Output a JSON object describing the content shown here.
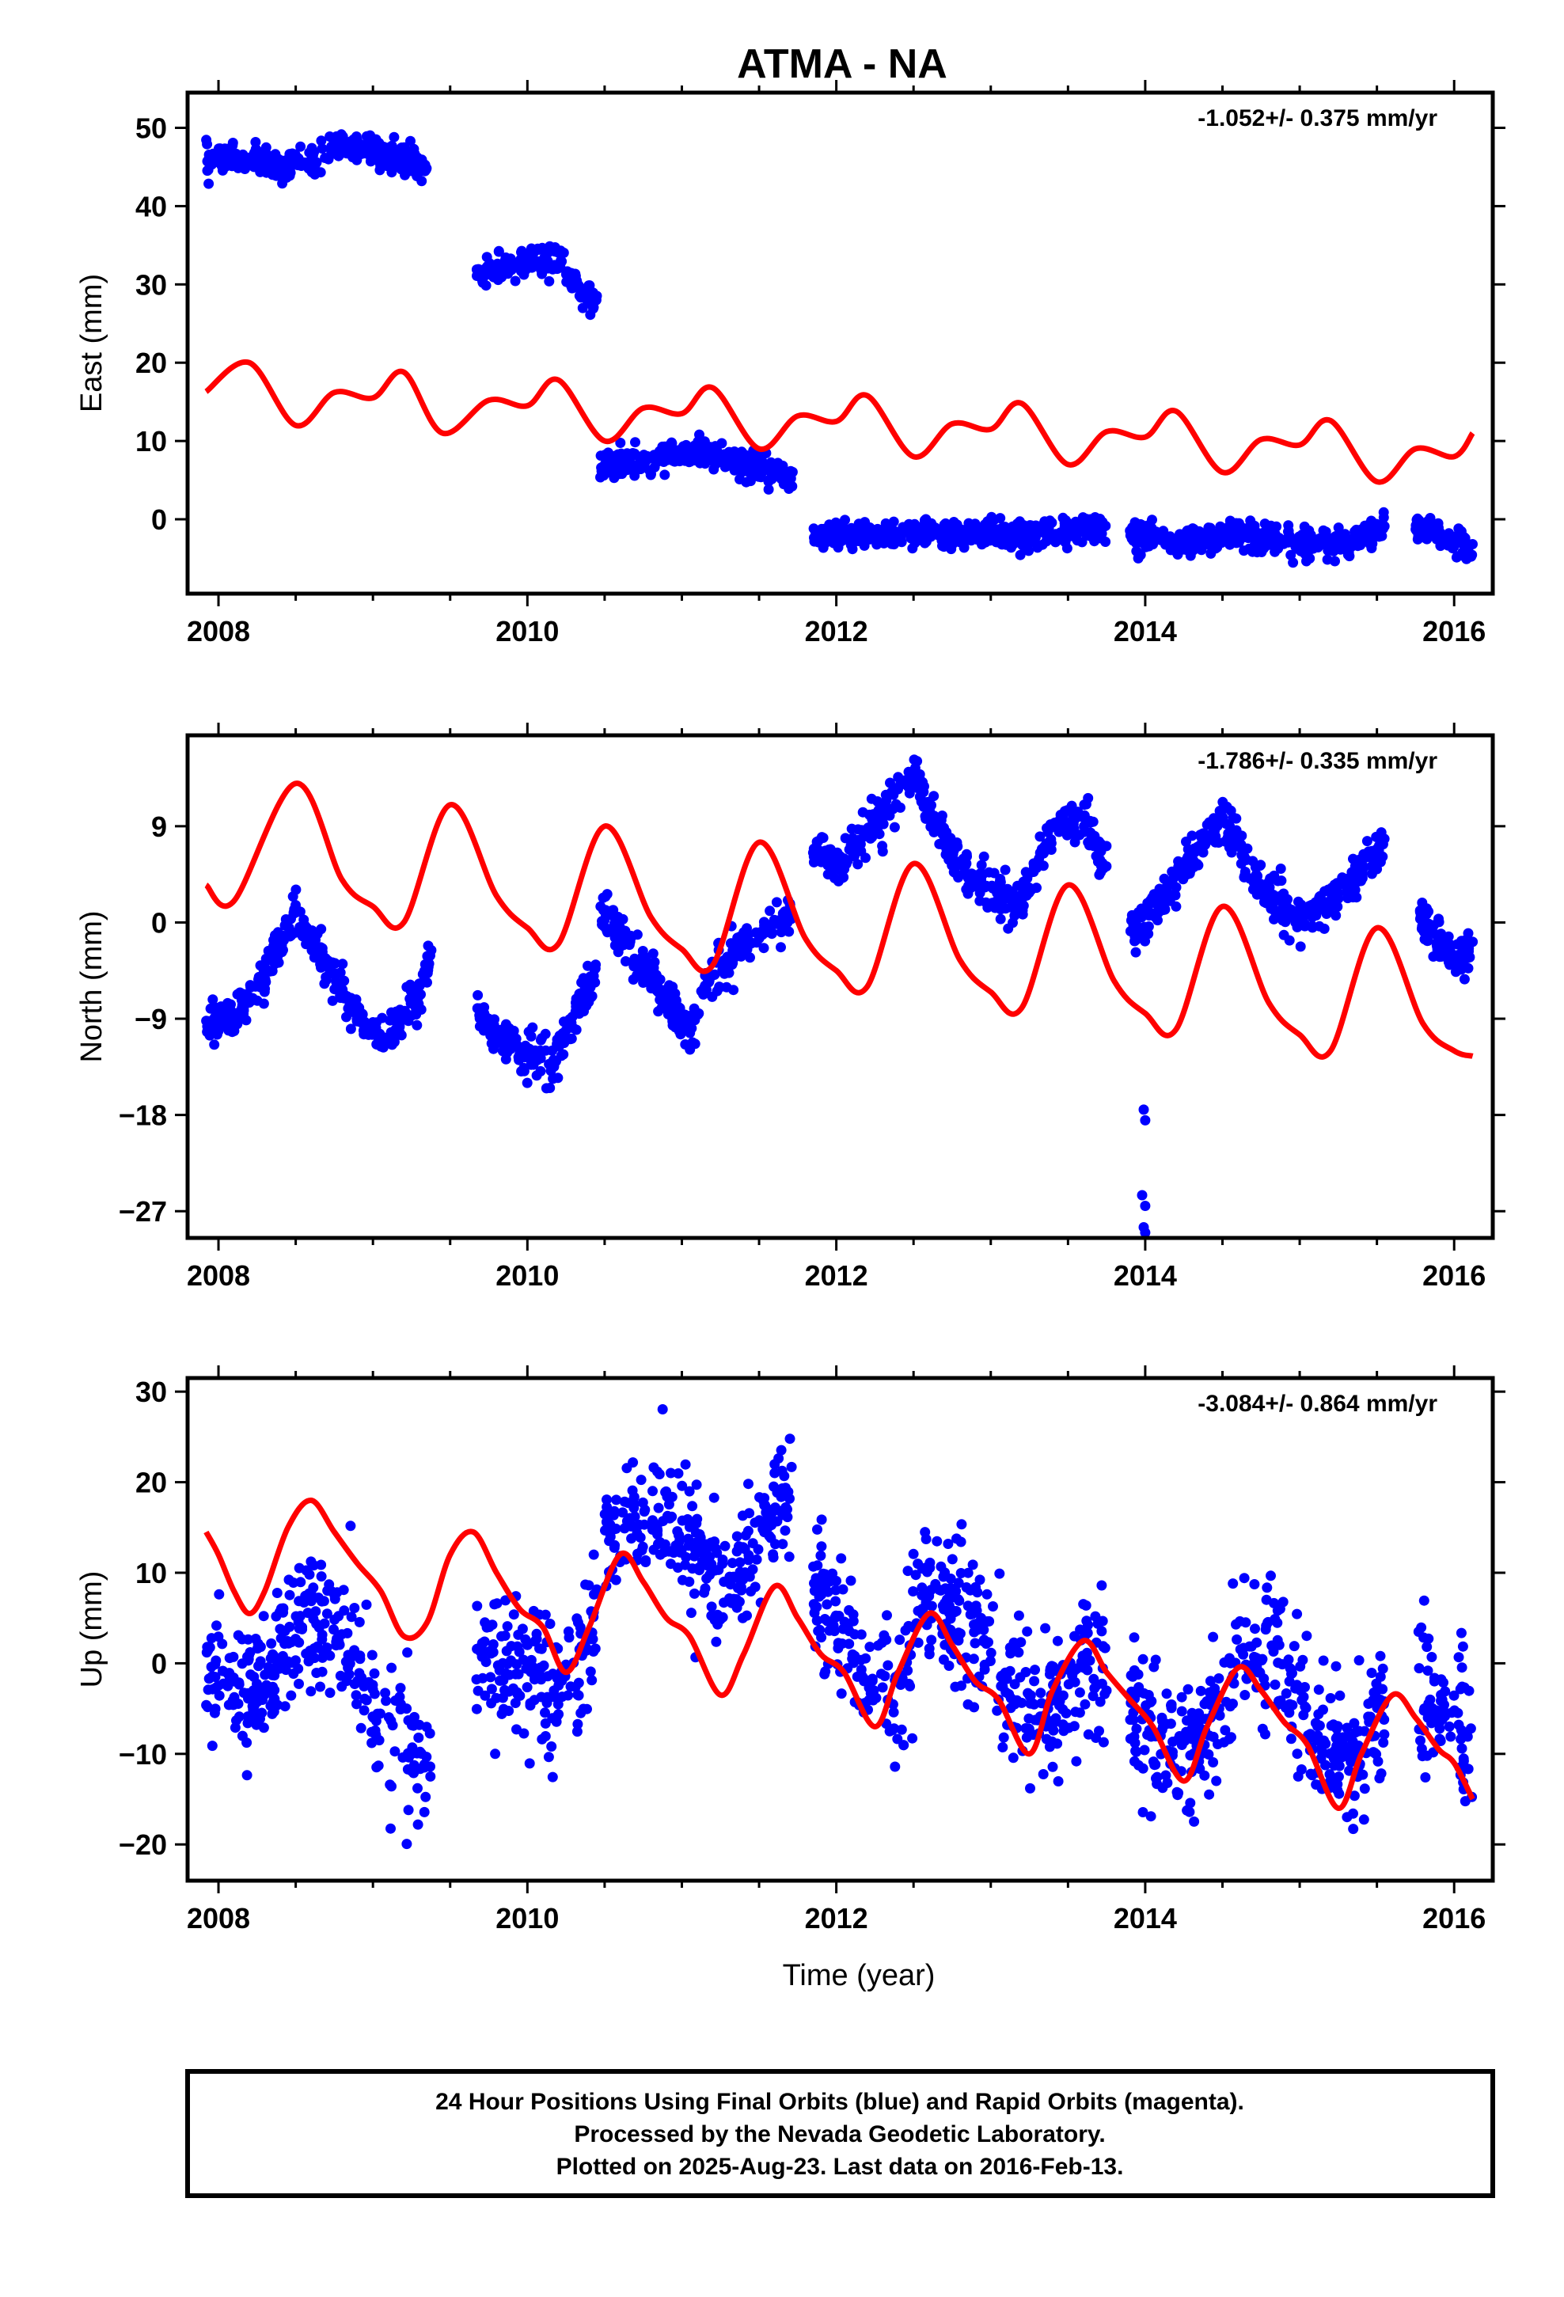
{
  "title": "ATMA - NA",
  "xlabel": "Time (year)",
  "colors": {
    "data": "#0000ff",
    "model": "#ff0000",
    "axis": "#000000"
  },
  "footer": {
    "line1": "24 Hour Positions Using Final Orbits (blue) and Rapid Orbits (magenta).",
    "line2": "Processed by the Nevada Geodetic Laboratory.",
    "line3": "Plotted on 2025-Aug-23. Last data on 2016-Feb-13."
  },
  "chart_data": [
    {
      "type": "scatter",
      "component": "East",
      "ylabel": "East (mm)",
      "rate": "-1.052+/- 0.375 mm/yr",
      "xlim": [
        2007.8,
        2016.25
      ],
      "ylim": [
        -9.5,
        54.5
      ],
      "xticks": [
        "2008",
        "2010",
        "2012",
        "2014",
        "2016"
      ],
      "yticks": [
        "0",
        "10",
        "20",
        "30",
        "40",
        "50"
      ],
      "segments": [
        {
          "x": [
            2007.92,
            2008.0,
            2008.2,
            2008.4,
            2008.6,
            2008.8,
            2009.0,
            2009.2,
            2009.35
          ],
          "y": [
            46,
            46,
            46,
            45,
            46,
            48,
            47,
            46,
            45
          ]
        },
        {
          "x": [
            2009.67,
            2009.8,
            2010.0,
            2010.2,
            2010.35,
            2010.45
          ],
          "y": [
            31,
            32,
            33,
            33,
            29,
            28
          ]
        },
        {
          "x": [
            2010.47,
            2010.6,
            2010.8,
            2011.0,
            2011.2,
            2011.4,
            2011.6,
            2011.72
          ],
          "y": [
            7,
            7,
            7,
            8,
            9,
            7,
            6,
            5
          ]
        },
        {
          "x": [
            2011.85,
            2012.0,
            2012.3,
            2012.6,
            2013.0,
            2013.3,
            2013.6,
            2013.75
          ],
          "y": [
            -2,
            -2,
            -2,
            -2,
            -2,
            -2,
            -1,
            -1
          ]
        },
        {
          "x": [
            2013.9,
            2014.0,
            2014.3,
            2014.6,
            2015.0,
            2015.3,
            2015.55
          ],
          "y": [
            -2,
            -2,
            -3,
            -2,
            -3,
            -3,
            -1
          ]
        },
        {
          "x": [
            2015.75,
            2015.9,
            2016.05,
            2016.12
          ],
          "y": [
            -1,
            -2,
            -3,
            -5
          ]
        }
      ],
      "model": {
        "x": [
          2007.92,
          2008.2,
          2008.5,
          2008.75,
          2009.0,
          2009.2,
          2009.45,
          2009.75,
          2010.0,
          2010.2,
          2010.5,
          2010.75,
          2011.0,
          2011.2,
          2011.5,
          2011.75,
          2012.0,
          2012.2,
          2012.5,
          2012.75,
          2013.0,
          2013.2,
          2013.5,
          2013.75,
          2014.0,
          2014.2,
          2014.5,
          2014.75,
          2015.0,
          2015.2,
          2015.5,
          2015.75,
          2016.0,
          2016.12
        ],
        "y": [
          16.3,
          20,
          12,
          16.2,
          15.5,
          18.8,
          11,
          15.2,
          14.5,
          17.8,
          10,
          14.2,
          13.5,
          16.8,
          9,
          13.2,
          12.5,
          15.8,
          8,
          12.2,
          11.5,
          14.8,
          7,
          11.2,
          10.5,
          13.8,
          6,
          10.2,
          9.5,
          12.6,
          4.8,
          9.0,
          8.0,
          11
        ]
      }
    },
    {
      "type": "scatter",
      "component": "North",
      "ylabel": "North (mm)",
      "rate": "-1.786+/- 0.335 mm/yr",
      "xlim": [
        2007.8,
        2016.25
      ],
      "ylim": [
        -29.5,
        17.5
      ],
      "xticks": [
        "2008",
        "2010",
        "2012",
        "2014",
        "2016"
      ],
      "yticks": [
        "9",
        "0",
        "−9",
        "−18",
        "−27"
      ],
      "segments": [
        {
          "x": [
            2007.92,
            2008.1,
            2008.3,
            2008.5,
            2008.7,
            2008.9,
            2009.1,
            2009.3,
            2009.38
          ],
          "y": [
            -9,
            -9,
            -5,
            1,
            -4,
            -9,
            -11,
            -7,
            -3
          ]
        },
        {
          "x": [
            2009.67,
            2009.8,
            2010.0,
            2010.15,
            2010.3,
            2010.45
          ],
          "y": [
            -8,
            -11,
            -12,
            -14,
            -9,
            -5
          ]
        },
        {
          "x": [
            2010.47,
            2010.6,
            2010.75,
            2010.9,
            2011.05,
            2011.2,
            2011.4,
            2011.6,
            2011.72
          ],
          "y": [
            2,
            -1,
            -4,
            -7,
            -10,
            -5,
            -2,
            0,
            1
          ]
        },
        {
          "x": [
            2011.85,
            2012.0,
            2012.3,
            2012.5,
            2012.75,
            2013.0,
            2013.2,
            2013.4,
            2013.6,
            2013.75
          ],
          "y": [
            7,
            5,
            10,
            14,
            6,
            3,
            2,
            9,
            10,
            5
          ]
        },
        {
          "x": [
            2013.9,
            2014.0,
            2014.2,
            2014.5,
            2014.75,
            2015.0,
            2015.2,
            2015.4,
            2015.55
          ],
          "y": [
            -1,
            0,
            4,
            10,
            3,
            0,
            2,
            5,
            7
          ]
        },
        {
          "x": [
            2015.75,
            2015.9,
            2016.05,
            2016.12
          ],
          "y": [
            1,
            -2,
            -4,
            -2
          ]
        }
      ],
      "outliers": {
        "x": [
          2013.99,
          2014.0,
          2013.98,
          2014.0,
          2013.99,
          2014.0
        ],
        "y": [
          -17.5,
          -18.5,
          -25.5,
          -26.5,
          -28.5,
          -29
        ]
      },
      "model": {
        "x": [
          2007.92,
          2008.1,
          2008.5,
          2008.8,
          2009.0,
          2009.2,
          2009.5,
          2009.8,
          2010.0,
          2010.2,
          2010.5,
          2010.8,
          2011.0,
          2011.2,
          2011.5,
          2011.8,
          2012.0,
          2012.2,
          2012.5,
          2012.8,
          2013.0,
          2013.2,
          2013.5,
          2013.8,
          2014.0,
          2014.2,
          2014.5,
          2014.8,
          2015.0,
          2015.2,
          2015.5,
          2015.8,
          2016.0,
          2016.12
        ],
        "y": [
          3.5,
          2,
          13,
          4,
          1.5,
          0,
          11,
          2.5,
          -0.5,
          -2,
          9,
          0.5,
          -2.5,
          -4,
          7.5,
          -1.5,
          -4.5,
          -6,
          5.5,
          -3.5,
          -6.5,
          -8,
          3.5,
          -5.5,
          -8.5,
          -10,
          1.5,
          -7.5,
          -10.5,
          -12,
          -0.5,
          -9.5,
          -12,
          -12.5
        ]
      }
    },
    {
      "type": "scatter",
      "component": "Up",
      "ylabel": "Up (mm)",
      "rate": "-3.084+/- 0.864 mm/yr",
      "xlim": [
        2007.8,
        2016.25
      ],
      "ylim": [
        -24,
        31.5
      ],
      "xticks": [
        "2008",
        "2010",
        "2012",
        "2014",
        "2016"
      ],
      "yticks": [
        "30",
        "20",
        "10",
        "0",
        "−10",
        "−20"
      ],
      "segments": [
        {
          "x": [
            2007.92,
            2008.1,
            2008.3,
            2008.6,
            2008.8,
            2009.0,
            2009.2,
            2009.38
          ],
          "y": [
            0,
            -2,
            -4,
            6,
            3,
            -5,
            -8,
            -10
          ]
        },
        {
          "x": [
            2009.67,
            2009.8,
            2010.0,
            2010.2,
            2010.4,
            2010.45
          ],
          "y": [
            0,
            2,
            -2,
            -3,
            2,
            8
          ]
        },
        {
          "x": [
            2010.5,
            2010.6,
            2010.8,
            2011.0,
            2011.2,
            2011.4,
            2011.6,
            2011.72
          ],
          "y": [
            14,
            16,
            17,
            13,
            9,
            10,
            18,
            17
          ]
        },
        {
          "x": [
            2011.85,
            2012.0,
            2012.2,
            2012.4,
            2012.6,
            2012.8,
            2013.0,
            2013.2,
            2013.4,
            2013.6,
            2013.75
          ],
          "y": [
            8,
            5,
            -2,
            -3,
            8,
            6,
            0,
            -5,
            -5,
            0,
            0
          ]
        },
        {
          "x": [
            2013.9,
            2014.0,
            2014.2,
            2014.4,
            2014.6,
            2014.8,
            2015.0,
            2015.2,
            2015.4,
            2015.55
          ],
          "y": [
            -5,
            -7,
            -10,
            -7,
            0,
            3,
            -5,
            -11,
            -10,
            -5
          ]
        },
        {
          "x": [
            2015.75,
            2015.9,
            2016.05,
            2016.12
          ],
          "y": [
            -3,
            -5,
            -6,
            -8
          ]
        }
      ],
      "model": {
        "x": [
          2007.92,
          2008.0,
          2008.1,
          2008.2,
          2008.3,
          2008.45,
          2008.6,
          2008.75,
          2008.9,
          2009.05,
          2009.2,
          2009.35,
          2009.5,
          2009.65,
          2009.8,
          2009.95,
          2010.1,
          2010.25,
          2010.4,
          2010.6,
          2010.75,
          2010.9,
          2011.05,
          2011.25,
          2011.4,
          2011.6,
          2011.75,
          2011.9,
          2012.05,
          2012.25,
          2012.4,
          2012.6,
          2012.75,
          2012.9,
          2013.05,
          2013.25,
          2013.4,
          2013.6,
          2013.75,
          2013.9,
          2014.05,
          2014.25,
          2014.4,
          2014.6,
          2014.75,
          2014.9,
          2015.05,
          2015.25,
          2015.4,
          2015.6,
          2015.75,
          2015.9,
          2016.0,
          2016.12
        ],
        "y": [
          14.5,
          12,
          8,
          5.5,
          8,
          15,
          18,
          14.5,
          11,
          8,
          3,
          4.5,
          12,
          14.5,
          10,
          6,
          4,
          -1,
          4,
          12,
          9,
          5,
          3,
          -3.5,
          1,
          8.5,
          5,
          1,
          -1,
          -7,
          -1,
          5.5,
          2,
          -2,
          -4,
          -10,
          -3,
          2.5,
          -1,
          -4,
          -7,
          -13,
          -7,
          -0.5,
          -3,
          -6.5,
          -9,
          -16,
          -10,
          -3.5,
          -6,
          -9.5,
          -11,
          -15
        ]
      }
    }
  ]
}
